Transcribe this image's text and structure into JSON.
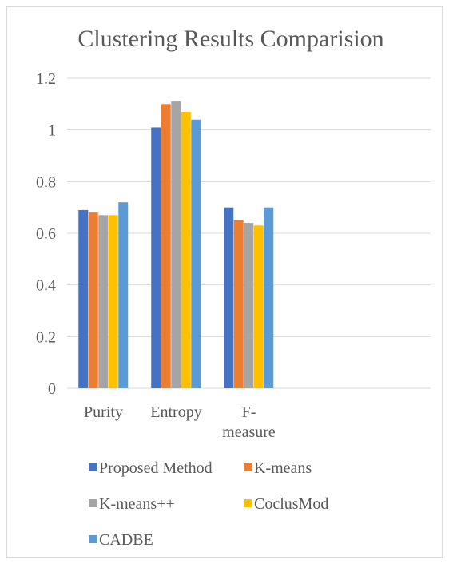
{
  "chart_data": {
    "type": "bar",
    "title": "Clustering Results Comparision",
    "categories": [
      "Purity",
      "Entropy",
      "F-measure"
    ],
    "category_display": [
      [
        "Purity"
      ],
      [
        "Entropy"
      ],
      [
        "F-",
        "measure"
      ]
    ],
    "series": [
      {
        "name": "Proposed Method",
        "values": [
          0.69,
          1.01,
          0.7
        ],
        "color": "#4472C4"
      },
      {
        "name": "K-means",
        "values": [
          0.68,
          1.1,
          0.65
        ],
        "color": "#ED7D31"
      },
      {
        "name": "K-means++",
        "values": [
          0.67,
          1.11,
          0.64
        ],
        "color": "#A5A5A5"
      },
      {
        "name": "CoclusMod",
        "values": [
          0.67,
          1.07,
          0.63
        ],
        "color": "#FFC000"
      },
      {
        "name": "CADBE",
        "values": [
          0.72,
          1.04,
          0.7
        ],
        "color": "#5B9BD5"
      }
    ],
    "y_ticks": [
      "0",
      "0.2",
      "0.4",
      "0.6",
      "0.8",
      "1",
      "1.2"
    ],
    "ylim": [
      0,
      1.2
    ],
    "xlabel": "",
    "ylabel": "",
    "grid": true,
    "legend_position": "bottom"
  }
}
